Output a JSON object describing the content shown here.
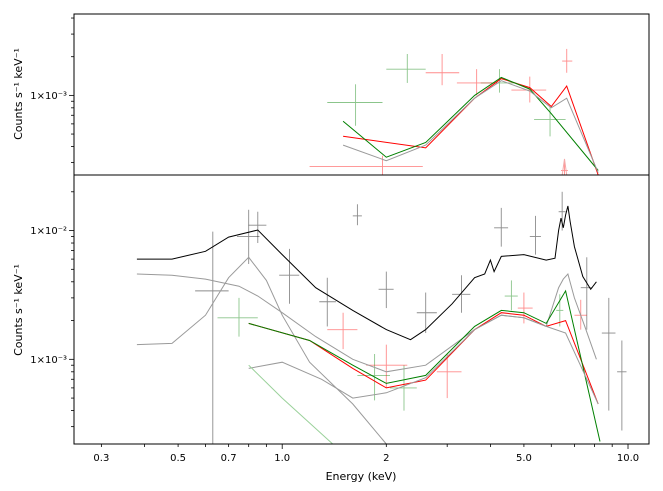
{
  "chart_data": [
    {
      "type": "line",
      "panel": "top",
      "ylabel": "Counts s⁻¹ keV⁻¹",
      "xlabel": "",
      "xscale": "log",
      "yscale": "log",
      "xlim": [
        0.25,
        11.5
      ],
      "ylim": [
        0.00024,
        0.0043
      ],
      "yticks": [
        {
          "value": 0.001,
          "label": "1×10⁻³"
        }
      ],
      "grid": false,
      "colors": {
        "black": "#000000",
        "red": "#ff0000",
        "green": "#008000"
      },
      "data_points": [
        {
          "series": "green",
          "x": 1.63,
          "y": 0.00088,
          "xerr": [
            1.35,
            1.95
          ],
          "yerr": [
            0.00058,
            0.00122
          ]
        },
        {
          "series": "green",
          "x": 2.3,
          "y": 0.0016,
          "xerr": [
            2.0,
            2.6
          ],
          "yerr": [
            0.00125,
            0.0021
          ]
        },
        {
          "series": "green",
          "x": 4.25,
          "y": 0.00125,
          "xerr": [
            3.75,
            4.75
          ],
          "yerr": [
            0.00105,
            0.0016
          ]
        },
        {
          "series": "green",
          "x": 5.95,
          "y": 0.00065,
          "xerr": [
            5.35,
            6.6
          ],
          "yerr": [
            0.00048,
            0.00082
          ]
        },
        {
          "series": "red",
          "x": 1.95,
          "y": 0.00028,
          "xerr": [
            1.2,
            2.55
          ],
          "yerr": [
            0.00024,
            0.00034
          ]
        },
        {
          "series": "red",
          "x": 2.9,
          "y": 0.0015,
          "xerr": [
            2.6,
            3.25
          ],
          "yerr": [
            0.0012,
            0.0021
          ]
        },
        {
          "series": "red",
          "x": 3.65,
          "y": 0.00125,
          "xerr": [
            3.2,
            4.2
          ],
          "yerr": [
            0.001,
            0.0016
          ]
        },
        {
          "series": "red",
          "x": 5.2,
          "y": 0.0011,
          "xerr": [
            4.6,
            5.8
          ],
          "yerr": [
            0.00088,
            0.0014
          ]
        },
        {
          "series": "red",
          "x": 6.65,
          "y": 0.00185,
          "xerr": [
            6.45,
            6.9
          ],
          "yerr": [
            0.0015,
            0.0023
          ]
        },
        {
          "series": "red",
          "x": 6.55,
          "y": 0.00026,
          "xerr": [
            6.4,
            6.7
          ],
          "yerr": [
            0.00024,
            0.00032
          ]
        }
      ],
      "series": [
        {
          "color": "#ff0000",
          "x": [
            1.5,
            2.6,
            3.6,
            4.3,
            5.2,
            6.0,
            6.65,
            8.2
          ],
          "y": [
            0.00048,
            0.00039,
            0.00095,
            0.00135,
            0.00115,
            0.00082,
            0.00118,
            0.00024
          ]
        },
        {
          "color": "#008000",
          "x": [
            1.5,
            2.0,
            2.6,
            3.6,
            4.3,
            5.2,
            6.0,
            8.2
          ],
          "y": [
            0.00063,
            0.00033,
            0.00043,
            0.001,
            0.00138,
            0.00112,
            0.00072,
            0.00026
          ]
        },
        {
          "color": "#9a9a9a",
          "x": [
            1.5,
            2.0,
            2.6,
            3.6,
            4.3,
            5.2,
            6.0,
            6.65,
            8.2
          ],
          "y": [
            0.00041,
            0.00031,
            0.00041,
            0.00095,
            0.0013,
            0.00108,
            0.0008,
            0.00095,
            0.00025
          ]
        },
        {
          "color": "#f4aaaa",
          "x": [
            6.45,
            6.55,
            6.65
          ],
          "y": [
            0.00024,
            0.00032,
            0.00024
          ]
        }
      ]
    },
    {
      "type": "line",
      "panel": "bottom",
      "ylabel": "Counts s⁻¹ keV⁻¹",
      "xlabel": "Energy (keV)",
      "xscale": "log",
      "yscale": "log",
      "xlim": [
        0.25,
        11.5
      ],
      "ylim": [
        0.00022,
        0.027
      ],
      "xticks": [
        {
          "value": 0.3,
          "label": "0.3"
        },
        {
          "value": 0.5,
          "label": "0.5"
        },
        {
          "value": 0.7,
          "label": "0.7"
        },
        {
          "value": 1.0,
          "label": "1.0"
        },
        {
          "value": 2.0,
          "label": "2"
        },
        {
          "value": 5.0,
          "label": "5.0"
        },
        {
          "value": 10.0,
          "label": "10.0"
        }
      ],
      "yticks": [
        {
          "value": 0.001,
          "label": "1×10⁻³"
        },
        {
          "value": 0.01,
          "label": "1×10⁻²"
        }
      ],
      "grid": false,
      "colors": {
        "black": "#000000",
        "red": "#ff0000",
        "green": "#008000"
      },
      "data_points": [
        {
          "series": "black",
          "x": 0.63,
          "y": 0.0034,
          "xerr": [
            0.56,
            0.7
          ],
          "yerr": [
            0.00022,
            0.0098
          ]
        },
        {
          "series": "black",
          "x": 0.8,
          "y": 0.009,
          "xerr": [
            0.74,
            0.86
          ],
          "yerr": [
            0.0055,
            0.0145
          ]
        },
        {
          "series": "black",
          "x": 0.85,
          "y": 0.011,
          "xerr": [
            0.8,
            0.9
          ],
          "yerr": [
            0.008,
            0.014
          ]
        },
        {
          "series": "black",
          "x": 1.05,
          "y": 0.0045,
          "xerr": [
            0.98,
            1.12
          ],
          "yerr": [
            0.0027,
            0.0072
          ]
        },
        {
          "series": "black",
          "x": 1.35,
          "y": 0.0028,
          "xerr": [
            1.28,
            1.43
          ],
          "yerr": [
            0.0018,
            0.0043
          ]
        },
        {
          "series": "black",
          "x": 1.65,
          "y": 0.013,
          "xerr": [
            1.6,
            1.7
          ],
          "yerr": [
            0.011,
            0.016
          ]
        },
        {
          "series": "black",
          "x": 2.0,
          "y": 0.0035,
          "xerr": [
            1.9,
            2.1
          ],
          "yerr": [
            0.0025,
            0.0048
          ]
        },
        {
          "series": "black",
          "x": 2.6,
          "y": 0.0023,
          "xerr": [
            2.45,
            2.8
          ],
          "yerr": [
            0.0016,
            0.0033
          ]
        },
        {
          "series": "black",
          "x": 3.3,
          "y": 0.0032,
          "xerr": [
            3.1,
            3.5
          ],
          "yerr": [
            0.0023,
            0.0045
          ]
        },
        {
          "series": "black",
          "x": 4.3,
          "y": 0.0105,
          "xerr": [
            4.1,
            4.5
          ],
          "yerr": [
            0.0075,
            0.015
          ]
        },
        {
          "series": "black",
          "x": 5.4,
          "y": 0.009,
          "xerr": [
            5.2,
            5.6
          ],
          "yerr": [
            0.0065,
            0.013
          ]
        },
        {
          "series": "black",
          "x": 6.45,
          "y": 0.014,
          "xerr": [
            6.3,
            6.6
          ],
          "yerr": [
            0.01,
            0.02
          ]
        },
        {
          "series": "black",
          "x": 7.6,
          "y": 0.0036,
          "xerr": [
            7.3,
            7.9
          ],
          "yerr": [
            0.0017,
            0.0062
          ]
        },
        {
          "series": "black",
          "x": 8.8,
          "y": 0.0016,
          "xerr": [
            8.4,
            9.2
          ],
          "yerr": [
            0.0004,
            0.003
          ]
        },
        {
          "series": "black",
          "x": 9.6,
          "y": 0.0008,
          "xerr": [
            9.3,
            9.9
          ],
          "yerr": [
            0.00028,
            0.0014
          ]
        },
        {
          "series": "green",
          "x": 0.75,
          "y": 0.0021,
          "xerr": [
            0.65,
            0.85
          ],
          "yerr": [
            0.0015,
            0.003
          ]
        },
        {
          "series": "green",
          "x": 1.85,
          "y": 0.00075,
          "xerr": [
            1.65,
            2.05
          ],
          "yerr": [
            0.00048,
            0.0011
          ]
        },
        {
          "series": "green",
          "x": 2.25,
          "y": 0.0006,
          "xerr": [
            2.05,
            2.45
          ],
          "yerr": [
            0.0004,
            0.0009
          ]
        },
        {
          "series": "green",
          "x": 4.6,
          "y": 0.0031,
          "xerr": [
            4.4,
            4.8
          ],
          "yerr": [
            0.0024,
            0.0041
          ]
        },
        {
          "series": "green",
          "x": 6.35,
          "y": 0.0024,
          "xerr": [
            6.2,
            6.5
          ],
          "yerr": [
            0.0018,
            0.0032
          ]
        },
        {
          "series": "red",
          "x": 1.5,
          "y": 0.0017,
          "xerr": [
            1.35,
            1.65
          ],
          "yerr": [
            0.0012,
            0.0023
          ]
        },
        {
          "series": "red",
          "x": 2.0,
          "y": 0.0009,
          "xerr": [
            1.75,
            2.3
          ],
          "yerr": [
            0.0006,
            0.0013
          ]
        },
        {
          "series": "red",
          "x": 3.0,
          "y": 0.0008,
          "xerr": [
            2.8,
            3.3
          ],
          "yerr": [
            0.0005,
            0.0011
          ]
        },
        {
          "series": "red",
          "x": 5.0,
          "y": 0.0025,
          "xerr": [
            4.8,
            5.3
          ],
          "yerr": [
            0.0019,
            0.0033
          ]
        },
        {
          "series": "red",
          "x": 7.3,
          "y": 0.0022,
          "xerr": [
            7.0,
            7.6
          ],
          "yerr": [
            0.0017,
            0.0029
          ]
        }
      ],
      "series": [
        {
          "color": "#000000",
          "x": [
            0.38,
            0.48,
            0.6,
            0.7,
            0.85,
            1.0,
            1.25,
            1.6,
            2.0,
            2.35,
            2.6,
            3.1,
            3.6,
            3.85,
            4.0,
            4.1,
            4.3,
            5.0,
            5.8,
            6.15,
            6.3,
            6.4,
            6.5,
            6.6,
            6.7,
            6.8,
            7.0,
            7.4,
            7.8,
            8.1
          ],
          "y": [
            0.006,
            0.006,
            0.0069,
            0.0089,
            0.0101,
            0.0065,
            0.0036,
            0.0024,
            0.0017,
            0.00142,
            0.0017,
            0.0027,
            0.0043,
            0.0046,
            0.0059,
            0.0048,
            0.0063,
            0.0065,
            0.0059,
            0.0061,
            0.01,
            0.0125,
            0.0105,
            0.0132,
            0.0155,
            0.0118,
            0.0075,
            0.0044,
            0.0035,
            0.004
          ]
        },
        {
          "color": "#9a9a9a",
          "x": [
            0.38,
            0.48,
            0.6,
            0.75,
            0.85,
            1.0,
            1.25,
            1.6,
            2.0,
            2.6,
            3.6,
            4.3,
            5.0,
            5.8,
            6.3,
            6.5,
            6.7,
            7.0,
            7.5,
            8.1
          ],
          "y": [
            0.0046,
            0.0045,
            0.0042,
            0.0037,
            0.0031,
            0.0023,
            0.0015,
            0.001,
            0.0008,
            0.0009,
            0.0017,
            0.0022,
            0.0021,
            0.0018,
            0.0036,
            0.0042,
            0.0046,
            0.003,
            0.0018,
            0.001
          ]
        },
        {
          "color": "#9a9a9a",
          "x": [
            0.38,
            0.48,
            0.6,
            0.7,
            0.8,
            0.9,
            1.0,
            1.2,
            1.6,
            2.0
          ],
          "y": [
            0.0013,
            0.00133,
            0.0022,
            0.0043,
            0.0062,
            0.0041,
            0.0022,
            0.00095,
            0.00045,
            0.00022
          ]
        },
        {
          "color": "#ff0000",
          "x": [
            0.8,
            1.2,
            1.6,
            2.0,
            2.6,
            3.6,
            4.3,
            5.0,
            5.8,
            6.6,
            8.2
          ],
          "y": [
            0.0019,
            0.0014,
            0.00085,
            0.0006,
            0.00069,
            0.0017,
            0.0023,
            0.0022,
            0.0018,
            0.002,
            0.00045
          ]
        },
        {
          "color": "#008000",
          "x": [
            0.8,
            1.2,
            1.6,
            2.0,
            2.6,
            3.6,
            4.3,
            5.0,
            5.8,
            6.6,
            8.3
          ],
          "y": [
            0.0019,
            0.0014,
            0.0009,
            0.00065,
            0.00075,
            0.0018,
            0.0024,
            0.0023,
            0.0019,
            0.0034,
            0.00023
          ]
        },
        {
          "color": "#9a9a9a",
          "x": [
            0.8,
            1.0,
            1.3,
            1.6,
            2.0,
            2.6,
            3.6,
            4.3,
            5.0,
            5.8,
            6.6,
            8.2
          ],
          "y": [
            0.00085,
            0.00095,
            0.0007,
            0.0005,
            0.00055,
            0.00072,
            0.0017,
            0.0022,
            0.0021,
            0.0018,
            0.0016,
            0.00045
          ]
        },
        {
          "color": "#9ad19a",
          "x": [
            0.8,
            1.0,
            1.2,
            1.4
          ],
          "y": [
            0.0009,
            0.0005,
            0.00032,
            0.00022
          ]
        }
      ]
    }
  ]
}
